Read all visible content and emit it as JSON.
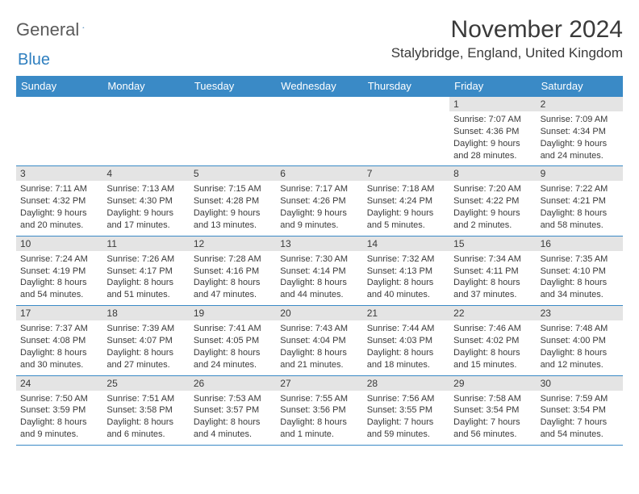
{
  "brand": {
    "text1": "General",
    "text2": "Blue"
  },
  "title": "November 2024",
  "location": "Stalybridge, England, United Kingdom",
  "colors": {
    "header_bg": "#3a8ac6",
    "header_fg": "#ffffff",
    "daynum_bg": "#e4e4e4",
    "text": "#3a3a3a",
    "logo_gray": "#5a5a5a",
    "logo_blue": "#2f7fbf",
    "border": "#3a8ac6",
    "background": "#ffffff"
  },
  "typography": {
    "title_fontsize": 30,
    "location_fontsize": 17,
    "weekday_fontsize": 13,
    "daynum_fontsize": 12,
    "info_fontsize": 11,
    "logo_fontsize": 22
  },
  "weekdays": [
    "Sunday",
    "Monday",
    "Tuesday",
    "Wednesday",
    "Thursday",
    "Friday",
    "Saturday"
  ],
  "grid_layout": {
    "columns": 7,
    "rows": 5,
    "leading_blanks": 5
  },
  "days": [
    {
      "n": "1",
      "sunrise": "Sunrise: 7:07 AM",
      "sunset": "Sunset: 4:36 PM",
      "day1": "Daylight: 9 hours",
      "day2": "and 28 minutes."
    },
    {
      "n": "2",
      "sunrise": "Sunrise: 7:09 AM",
      "sunset": "Sunset: 4:34 PM",
      "day1": "Daylight: 9 hours",
      "day2": "and 24 minutes."
    },
    {
      "n": "3",
      "sunrise": "Sunrise: 7:11 AM",
      "sunset": "Sunset: 4:32 PM",
      "day1": "Daylight: 9 hours",
      "day2": "and 20 minutes."
    },
    {
      "n": "4",
      "sunrise": "Sunrise: 7:13 AM",
      "sunset": "Sunset: 4:30 PM",
      "day1": "Daylight: 9 hours",
      "day2": "and 17 minutes."
    },
    {
      "n": "5",
      "sunrise": "Sunrise: 7:15 AM",
      "sunset": "Sunset: 4:28 PM",
      "day1": "Daylight: 9 hours",
      "day2": "and 13 minutes."
    },
    {
      "n": "6",
      "sunrise": "Sunrise: 7:17 AM",
      "sunset": "Sunset: 4:26 PM",
      "day1": "Daylight: 9 hours",
      "day2": "and 9 minutes."
    },
    {
      "n": "7",
      "sunrise": "Sunrise: 7:18 AM",
      "sunset": "Sunset: 4:24 PM",
      "day1": "Daylight: 9 hours",
      "day2": "and 5 minutes."
    },
    {
      "n": "8",
      "sunrise": "Sunrise: 7:20 AM",
      "sunset": "Sunset: 4:22 PM",
      "day1": "Daylight: 9 hours",
      "day2": "and 2 minutes."
    },
    {
      "n": "9",
      "sunrise": "Sunrise: 7:22 AM",
      "sunset": "Sunset: 4:21 PM",
      "day1": "Daylight: 8 hours",
      "day2": "and 58 minutes."
    },
    {
      "n": "10",
      "sunrise": "Sunrise: 7:24 AM",
      "sunset": "Sunset: 4:19 PM",
      "day1": "Daylight: 8 hours",
      "day2": "and 54 minutes."
    },
    {
      "n": "11",
      "sunrise": "Sunrise: 7:26 AM",
      "sunset": "Sunset: 4:17 PM",
      "day1": "Daylight: 8 hours",
      "day2": "and 51 minutes."
    },
    {
      "n": "12",
      "sunrise": "Sunrise: 7:28 AM",
      "sunset": "Sunset: 4:16 PM",
      "day1": "Daylight: 8 hours",
      "day2": "and 47 minutes."
    },
    {
      "n": "13",
      "sunrise": "Sunrise: 7:30 AM",
      "sunset": "Sunset: 4:14 PM",
      "day1": "Daylight: 8 hours",
      "day2": "and 44 minutes."
    },
    {
      "n": "14",
      "sunrise": "Sunrise: 7:32 AM",
      "sunset": "Sunset: 4:13 PM",
      "day1": "Daylight: 8 hours",
      "day2": "and 40 minutes."
    },
    {
      "n": "15",
      "sunrise": "Sunrise: 7:34 AM",
      "sunset": "Sunset: 4:11 PM",
      "day1": "Daylight: 8 hours",
      "day2": "and 37 minutes."
    },
    {
      "n": "16",
      "sunrise": "Sunrise: 7:35 AM",
      "sunset": "Sunset: 4:10 PM",
      "day1": "Daylight: 8 hours",
      "day2": "and 34 minutes."
    },
    {
      "n": "17",
      "sunrise": "Sunrise: 7:37 AM",
      "sunset": "Sunset: 4:08 PM",
      "day1": "Daylight: 8 hours",
      "day2": "and 30 minutes."
    },
    {
      "n": "18",
      "sunrise": "Sunrise: 7:39 AM",
      "sunset": "Sunset: 4:07 PM",
      "day1": "Daylight: 8 hours",
      "day2": "and 27 minutes."
    },
    {
      "n": "19",
      "sunrise": "Sunrise: 7:41 AM",
      "sunset": "Sunset: 4:05 PM",
      "day1": "Daylight: 8 hours",
      "day2": "and 24 minutes."
    },
    {
      "n": "20",
      "sunrise": "Sunrise: 7:43 AM",
      "sunset": "Sunset: 4:04 PM",
      "day1": "Daylight: 8 hours",
      "day2": "and 21 minutes."
    },
    {
      "n": "21",
      "sunrise": "Sunrise: 7:44 AM",
      "sunset": "Sunset: 4:03 PM",
      "day1": "Daylight: 8 hours",
      "day2": "and 18 minutes."
    },
    {
      "n": "22",
      "sunrise": "Sunrise: 7:46 AM",
      "sunset": "Sunset: 4:02 PM",
      "day1": "Daylight: 8 hours",
      "day2": "and 15 minutes."
    },
    {
      "n": "23",
      "sunrise": "Sunrise: 7:48 AM",
      "sunset": "Sunset: 4:00 PM",
      "day1": "Daylight: 8 hours",
      "day2": "and 12 minutes."
    },
    {
      "n": "24",
      "sunrise": "Sunrise: 7:50 AM",
      "sunset": "Sunset: 3:59 PM",
      "day1": "Daylight: 8 hours",
      "day2": "and 9 minutes."
    },
    {
      "n": "25",
      "sunrise": "Sunrise: 7:51 AM",
      "sunset": "Sunset: 3:58 PM",
      "day1": "Daylight: 8 hours",
      "day2": "and 6 minutes."
    },
    {
      "n": "26",
      "sunrise": "Sunrise: 7:53 AM",
      "sunset": "Sunset: 3:57 PM",
      "day1": "Daylight: 8 hours",
      "day2": "and 4 minutes."
    },
    {
      "n": "27",
      "sunrise": "Sunrise: 7:55 AM",
      "sunset": "Sunset: 3:56 PM",
      "day1": "Daylight: 8 hours",
      "day2": "and 1 minute."
    },
    {
      "n": "28",
      "sunrise": "Sunrise: 7:56 AM",
      "sunset": "Sunset: 3:55 PM",
      "day1": "Daylight: 7 hours",
      "day2": "and 59 minutes."
    },
    {
      "n": "29",
      "sunrise": "Sunrise: 7:58 AM",
      "sunset": "Sunset: 3:54 PM",
      "day1": "Daylight: 7 hours",
      "day2": "and 56 minutes."
    },
    {
      "n": "30",
      "sunrise": "Sunrise: 7:59 AM",
      "sunset": "Sunset: 3:54 PM",
      "day1": "Daylight: 7 hours",
      "day2": "and 54 minutes."
    }
  ]
}
